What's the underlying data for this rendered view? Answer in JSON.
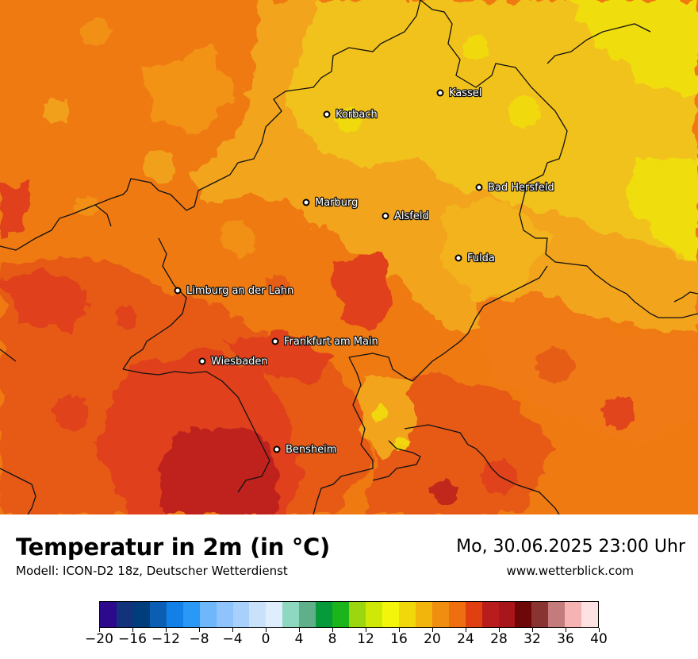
{
  "map": {
    "cities": [
      {
        "name": "Kassel",
        "icon": "city-marker-icon"
      },
      {
        "name": "Korbach",
        "icon": "city-marker-icon"
      },
      {
        "name": "Bad Hersfeld",
        "icon": "city-marker-icon"
      },
      {
        "name": "Marburg",
        "icon": "city-marker-icon"
      },
      {
        "name": "Alsfeld",
        "icon": "city-marker-icon"
      },
      {
        "name": "Fulda",
        "icon": "city-marker-icon"
      },
      {
        "name": "Limburg an der Lahn",
        "icon": "city-marker-icon"
      },
      {
        "name": "Frankfurt am Main",
        "icon": "city-marker-icon"
      },
      {
        "name": "Wiesbaden",
        "icon": "city-marker-icon"
      },
      {
        "name": "Bensheim",
        "icon": "city-marker-icon"
      }
    ],
    "colors": {
      "hot_base": "#f07a12",
      "warm": "#f2a51c",
      "warmer_yellow": "#f2c21b",
      "yellow": "#f0dd0e",
      "hot_red": "#e0401a",
      "very_hot": "#bf201f"
    }
  },
  "footer": {
    "title": "Temperatur in 2m (in °C)",
    "model": "Modell: ICON-D2 18z, Deutscher Wetterdienst",
    "datetime": "Mo, 30.06.2025 23:00 Uhr",
    "website": "www.wetterblick.com"
  },
  "legend": {
    "colors": [
      "#2d0a8c",
      "#12337c",
      "#003d7d",
      "#0a5fb4",
      "#1280e6",
      "#2a98f5",
      "#6fb7fb",
      "#8ec3fb",
      "#a7d1fb",
      "#c9e1fb",
      "#dfeefd",
      "#8fd8c0",
      "#5faf8a",
      "#069a3a",
      "#1bb41b",
      "#9cd60f",
      "#cfe805",
      "#f3f50b",
      "#f1d80b",
      "#f1b50c",
      "#ef8e0f",
      "#ef6f10",
      "#e23f10",
      "#b81c1c",
      "#a8151a",
      "#6e0808",
      "#8a3333",
      "#c47b7b",
      "#f5b3b3",
      "#fce2e2"
    ],
    "ticks": [
      "−20",
      "−16",
      "−12",
      "−8",
      "−4",
      "0",
      "4",
      "8",
      "12",
      "16",
      "20",
      "24",
      "28",
      "32",
      "36",
      "40"
    ],
    "min": -20,
    "max": 40
  }
}
